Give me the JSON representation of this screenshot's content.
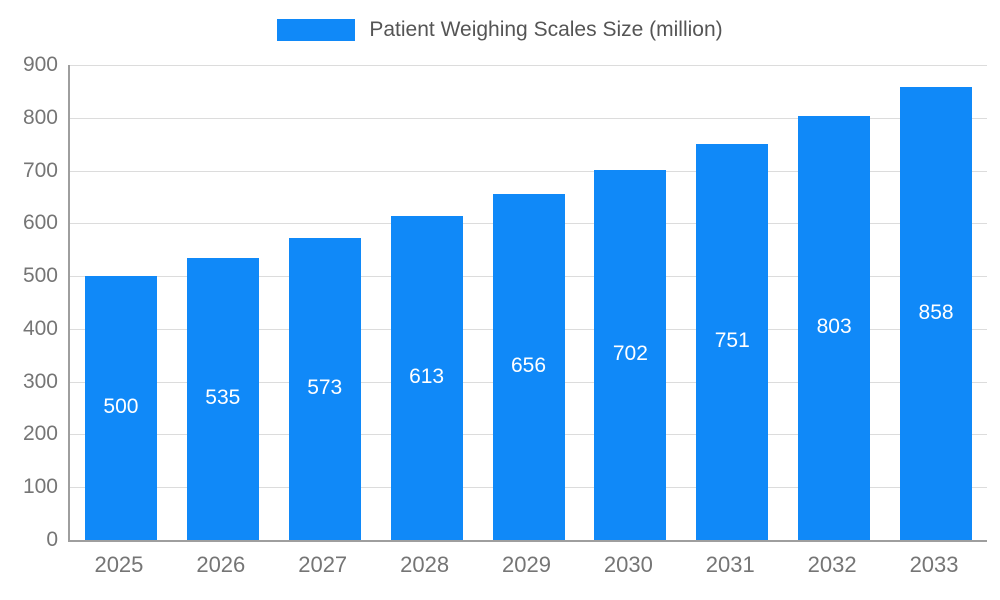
{
  "chart_data": {
    "type": "bar",
    "title": "Patient Weighing Scales Size (million)",
    "categories": [
      "2025",
      "2026",
      "2027",
      "2028",
      "2029",
      "2030",
      "2031",
      "2032",
      "2033"
    ],
    "values": [
      500,
      535,
      573,
      613,
      656,
      702,
      751,
      803,
      858
    ],
    "xlabel": "",
    "ylabel": "",
    "ylim": [
      0,
      900
    ],
    "yticks": [
      0,
      100,
      200,
      300,
      400,
      500,
      600,
      700,
      800,
      900
    ],
    "grid": "horizontal",
    "legend_position": "top-center",
    "bar_color": "#1089f8",
    "value_label_color": "#ffffff",
    "axis_text_color": "#757575",
    "title_color": "#555555",
    "gridline_color": "#dcdcdc",
    "axis_line_color": "#9e9e9e"
  }
}
